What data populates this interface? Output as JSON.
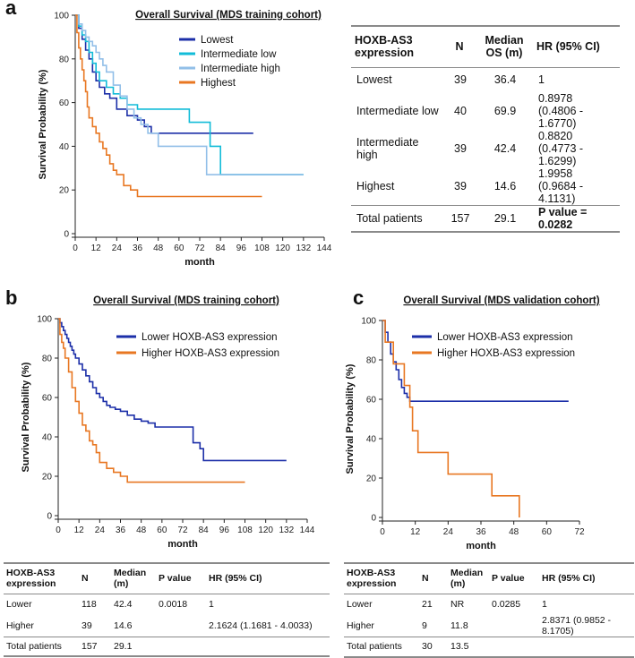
{
  "panels": {
    "a": "a",
    "b": "b",
    "c": "c"
  },
  "chart_data": [
    {
      "type": "line",
      "panel": "a",
      "title": "Overall Survival (MDS training cohort)",
      "xlabel": "month",
      "ylabel": "Survival Probability (%)",
      "xlim": [
        0,
        144
      ],
      "ylim": [
        0,
        100
      ],
      "xticks": [
        0,
        12,
        24,
        36,
        48,
        60,
        72,
        84,
        96,
        108,
        120,
        132,
        144
      ],
      "yticks": [
        0,
        20,
        40,
        60,
        80,
        100
      ],
      "legend_position": "top-right",
      "series": [
        {
          "name": "Lowest",
          "color": "#1c2fa8",
          "x": [
            0,
            2,
            4,
            6,
            8,
            10,
            12,
            14,
            17,
            20,
            24,
            30,
            36,
            40,
            44,
            103
          ],
          "y": [
            100,
            94,
            89,
            84,
            80,
            74,
            70,
            67,
            64,
            62,
            57,
            54,
            52,
            49,
            46,
            46
          ]
        },
        {
          "name": "Intermediate low",
          "color": "#12bcd8",
          "x": [
            0,
            2,
            4,
            6,
            8,
            10,
            12,
            14,
            18,
            22,
            26,
            30,
            36,
            44,
            52,
            60,
            66,
            70,
            78,
            84,
            120,
            132
          ],
          "y": [
            100,
            95,
            91,
            88,
            83,
            78,
            74,
            70,
            67,
            64,
            62,
            59,
            57,
            57,
            57,
            57,
            51,
            51,
            40,
            27,
            27,
            27
          ]
        },
        {
          "name": "Intermediate high",
          "color": "#92bfe8",
          "x": [
            0,
            2,
            4,
            6,
            8,
            10,
            12,
            14,
            16,
            18,
            22,
            26,
            30,
            34,
            38,
            42,
            48,
            60,
            72,
            76,
            84,
            96,
            108,
            120,
            132
          ],
          "y": [
            100,
            96,
            93,
            90,
            88,
            86,
            83,
            80,
            77,
            74,
            68,
            63,
            57,
            53,
            50,
            46,
            40,
            40,
            40,
            27,
            27,
            27,
            27,
            27,
            27
          ]
        },
        {
          "name": "Highest",
          "color": "#e87722",
          "x": [
            0,
            1,
            2,
            3,
            4,
            5,
            6,
            7,
            8,
            10,
            12,
            14,
            16,
            18,
            20,
            22,
            24,
            28,
            32,
            36,
            108
          ],
          "y": [
            100,
            92,
            85,
            80,
            75,
            70,
            65,
            58,
            53,
            49,
            46,
            42,
            39,
            36,
            32,
            29,
            27,
            22,
            20,
            17,
            17
          ]
        }
      ]
    },
    {
      "type": "line",
      "panel": "b",
      "title": "Overall Survival (MDS training cohort)",
      "xlabel": "month",
      "ylabel": "Survival Probability (%)",
      "xlim": [
        0,
        144
      ],
      "ylim": [
        0,
        100
      ],
      "xticks": [
        0,
        12,
        24,
        36,
        48,
        60,
        72,
        84,
        96,
        108,
        120,
        132,
        144
      ],
      "yticks": [
        0,
        20,
        40,
        60,
        80,
        100
      ],
      "legend_position": "top-right",
      "series": [
        {
          "name": "Lower HOXB-AS3 expression",
          "color": "#1c2fa8",
          "x": [
            0,
            1,
            2,
            3,
            4,
            5,
            6,
            7,
            8,
            9,
            10,
            12,
            14,
            16,
            18,
            20,
            22,
            24,
            26,
            28,
            30,
            33,
            36,
            40,
            44,
            48,
            52,
            56,
            60,
            72,
            78,
            82,
            84,
            132
          ],
          "y": [
            100,
            98,
            96,
            94,
            92,
            90,
            88,
            86,
            84,
            82,
            80,
            77,
            74,
            71,
            68,
            65,
            62,
            60,
            58,
            56,
            55,
            54,
            53,
            51,
            49,
            48,
            47,
            45,
            45,
            45,
            37,
            34,
            28,
            28
          ]
        },
        {
          "name": "Higher HOXB-AS3 expression",
          "color": "#e87722",
          "x": [
            0,
            1,
            2,
            3,
            4,
            6,
            8,
            10,
            12,
            14,
            16,
            18,
            20,
            22,
            24,
            28,
            32,
            36,
            40,
            108
          ],
          "y": [
            100,
            92,
            88,
            85,
            80,
            73,
            65,
            58,
            52,
            46,
            43,
            38,
            36,
            32,
            27,
            24,
            22,
            20,
            17,
            17
          ]
        }
      ]
    },
    {
      "type": "line",
      "panel": "c",
      "title": "Overall Survival (MDS validation cohort)",
      "xlabel": "month",
      "ylabel": "Survival Probability (%)",
      "xlim": [
        0,
        72
      ],
      "ylim": [
        0,
        100
      ],
      "xticks": [
        0,
        12,
        24,
        36,
        48,
        60,
        72
      ],
      "yticks": [
        0,
        20,
        40,
        60,
        80,
        100
      ],
      "legend_position": "top-right",
      "series": [
        {
          "name": "Lower HOXB-AS3 expression",
          "color": "#1c2fa8",
          "x": [
            0,
            1,
            2,
            3,
            4,
            5,
            6,
            7,
            8,
            9,
            10,
            68
          ],
          "y": [
            100,
            94,
            89,
            83,
            79,
            75,
            70,
            66,
            63,
            61,
            59,
            59
          ]
        },
        {
          "name": "Higher HOXB-AS3 expression",
          "color": "#e87722",
          "x": [
            0,
            1,
            2,
            3,
            4,
            5,
            6,
            8,
            10,
            11,
            13,
            24,
            32,
            40,
            50
          ],
          "y": [
            100,
            89,
            89,
            89,
            78,
            78,
            78,
            67,
            56,
            44,
            33,
            22,
            22,
            11,
            0
          ]
        }
      ]
    }
  ],
  "table_a": {
    "headers": [
      "HOXB-AS3 expression",
      "N",
      "Median OS (m)",
      "HR (95% CI)"
    ],
    "rows": [
      {
        "group": "Lowest",
        "n": "39",
        "median": "36.4",
        "hr": "1",
        "ci": ""
      },
      {
        "group": "Intermediate low",
        "n": "40",
        "median": "69.9",
        "hr": "0.8978",
        "ci": "(0.4806 - 1.6770)"
      },
      {
        "group": "Intermediate high",
        "n": "39",
        "median": "42.4",
        "hr": "0.8820",
        "ci": "(0.4773 - 1.6299)"
      },
      {
        "group": "Highest",
        "n": "39",
        "median": "14.6",
        "hr": "1.9958",
        "ci": "(0.9684 - 4.1131)"
      }
    ],
    "total": {
      "label": "Total patients",
      "n": "157",
      "median": "29.1",
      "p": "P value = 0.0282"
    }
  },
  "table_b": {
    "headers": [
      "HOXB-AS3 expression",
      "N",
      "Median (m)",
      "P value",
      "HR (95% CI)"
    ],
    "rows": [
      {
        "group": "Lower",
        "n": "118",
        "median": "42.4",
        "p": "0.0018",
        "hr": "1"
      },
      {
        "group": "Higher",
        "n": "39",
        "median": "14.6",
        "p": "",
        "hr": "2.1624 (1.1681 - 4.0033)"
      }
    ],
    "total": {
      "label": "Total patients",
      "n": "157",
      "median": "29.1"
    }
  },
  "table_c": {
    "headers": [
      "HOXB-AS3 expression",
      "N",
      "Median (m)",
      "P value",
      "HR (95% CI)"
    ],
    "rows": [
      {
        "group": "Lower",
        "n": "21",
        "median": "NR",
        "p": "0.0285",
        "hr": "1"
      },
      {
        "group": "Higher",
        "n": "9",
        "median": "11.8",
        "p": "",
        "hr": "2.8371 (0.9852 - 8.1705)"
      }
    ],
    "total": {
      "label": "Total patients",
      "n": "30",
      "median": "13.5"
    }
  }
}
